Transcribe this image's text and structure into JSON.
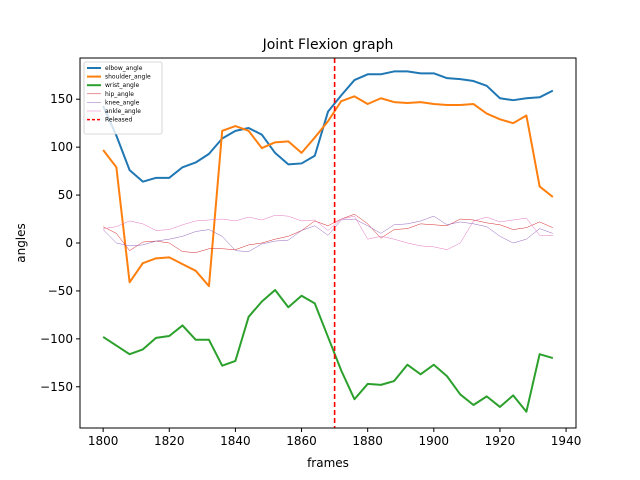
{
  "chart_data": {
    "type": "line",
    "title": "Joint Flexion graph",
    "xlabel": "frames",
    "ylabel": "angles",
    "xlim": [
      1793,
      1943
    ],
    "ylim": [
      -193,
      193
    ],
    "xticks": [
      1800,
      1820,
      1840,
      1860,
      1880,
      1900,
      1920,
      1940
    ],
    "yticks": [
      -150,
      -100,
      -50,
      0,
      50,
      100,
      150
    ],
    "xtick_labels": [
      "1800",
      "1820",
      "1840",
      "1860",
      "1880",
      "1900",
      "1920",
      "1940"
    ],
    "ytick_labels": [
      "−150",
      "−100",
      "−50",
      "0",
      "50",
      "100",
      "150"
    ],
    "grid": false,
    "legend_position": "top-left",
    "x": [
      1800,
      1804,
      1808,
      1812,
      1816,
      1820,
      1824,
      1828,
      1832,
      1836,
      1840,
      1844,
      1848,
      1852,
      1856,
      1860,
      1864,
      1868,
      1872,
      1876,
      1880,
      1884,
      1888,
      1892,
      1896,
      1900,
      1904,
      1908,
      1912,
      1916,
      1920,
      1924,
      1928,
      1932,
      1936
    ],
    "series": [
      {
        "name": "elbow_angle",
        "color": "#1f77b4",
        "width": 2,
        "values": [
          143,
          112,
          76,
          64,
          68,
          68,
          79,
          84,
          93,
          109,
          117,
          120,
          113,
          94,
          82,
          83,
          91,
          137,
          154,
          170,
          176,
          176,
          179,
          179,
          177,
          177,
          172,
          171,
          169,
          164,
          151,
          149,
          151,
          152,
          159
        ]
      },
      {
        "name": "shoulder_angle",
        "color": "#ff7f0e",
        "width": 2,
        "values": [
          97,
          79,
          -41,
          -21,
          -16,
          -15,
          -22,
          -29,
          -45,
          117,
          122,
          117,
          99,
          105,
          106,
          94,
          110,
          127,
          148,
          153,
          145,
          151,
          147,
          146,
          147,
          145,
          144,
          144,
          145,
          135,
          129,
          125,
          133,
          59,
          48
        ]
      },
      {
        "name": "wrist_angle",
        "color": "#2ca02c",
        "width": 2,
        "values": [
          -98,
          -107,
          -116,
          -111,
          -99,
          -97,
          -86,
          -101,
          -101,
          -128,
          -123,
          -77,
          -61,
          -49,
          -67,
          -55,
          -63,
          -98,
          -133,
          -163,
          -147,
          -148,
          -144,
          -127,
          -137,
          -127,
          -139,
          -158,
          -169,
          -160,
          -171,
          -159,
          -176,
          -116,
          -120
        ]
      },
      {
        "name": "hip_angle",
        "color": "#d62728",
        "width": 0.5,
        "values": [
          17,
          10,
          -8,
          1,
          2,
          0,
          -9,
          -10,
          -6,
          -6,
          -7,
          -2,
          0,
          4,
          7,
          13,
          23,
          18,
          25,
          30,
          20,
          5,
          14,
          15,
          20,
          19,
          18,
          25,
          24,
          21,
          19,
          14,
          16,
          22,
          16
        ]
      },
      {
        "name": "knee_angle",
        "color": "#9467bd",
        "width": 0.5,
        "values": [
          14,
          0,
          -3,
          -2,
          2,
          4,
          7,
          12,
          14,
          7,
          -8,
          -9,
          -1,
          2,
          3,
          13,
          18,
          8,
          24,
          25,
          18,
          10,
          19,
          20,
          23,
          28,
          19,
          22,
          20,
          17,
          7,
          0,
          4,
          15,
          10
        ]
      },
      {
        "name": "ankle_angle",
        "color": "#e377c2",
        "width": 0.5,
        "values": [
          15,
          17,
          23,
          20,
          13,
          14,
          19,
          23,
          24,
          25,
          23,
          27,
          24,
          29,
          28,
          23,
          24,
          13,
          25,
          28,
          4,
          7,
          4,
          0,
          -3,
          -4,
          -7,
          0,
          23,
          27,
          22,
          24,
          26,
          8,
          8
        ]
      }
    ],
    "vline": {
      "name": "Released",
      "x": 1870,
      "color": "#ff0000",
      "style": "dashed"
    }
  }
}
